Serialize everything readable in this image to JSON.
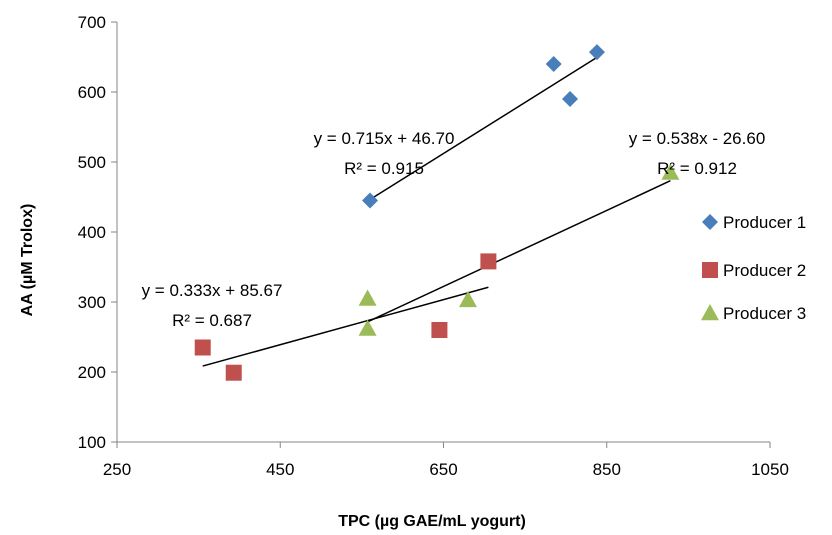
{
  "chart_data": {
    "type": "scatter",
    "xlabel": "TPC (µg GAE/mL yogurt)",
    "ylabel": "AA (µM Trolox)",
    "xlim": [
      250,
      1050
    ],
    "ylim": [
      100,
      700
    ],
    "xticks": [
      250,
      450,
      650,
      850,
      1050
    ],
    "yticks": [
      100,
      200,
      300,
      400,
      500,
      600,
      700
    ],
    "grid": false,
    "legend_position": "right",
    "series": [
      {
        "name": "Producer 1",
        "marker": "diamond",
        "color": "#4a7ebb",
        "points": [
          [
            560,
            445
          ],
          [
            785,
            640
          ],
          [
            805,
            590
          ],
          [
            838,
            657
          ]
        ],
        "trendline": {
          "x": [
            560,
            838
          ],
          "equation": "y = 0.715x + 46.70",
          "r2": "R² = 0.915"
        }
      },
      {
        "name": "Producer 2",
        "marker": "square",
        "color": "#c0504d",
        "points": [
          [
            355,
            235
          ],
          [
            393,
            199
          ],
          [
            645,
            260
          ],
          [
            705,
            358
          ]
        ],
        "trendline": {
          "x": [
            355,
            705
          ],
          "equation": "y = 0.333x + 85.67",
          "r2": "R² = 0.687"
        }
      },
      {
        "name": "Producer 3",
        "marker": "triangle",
        "color": "#9bbb59",
        "points": [
          [
            557,
            305
          ],
          [
            557,
            262
          ],
          [
            680,
            303
          ],
          [
            928,
            485
          ]
        ],
        "trendline": {
          "x": [
            557,
            928
          ],
          "equation": "y = 0.538x - 26.60",
          "r2": "R² = 0.912"
        }
      }
    ]
  }
}
